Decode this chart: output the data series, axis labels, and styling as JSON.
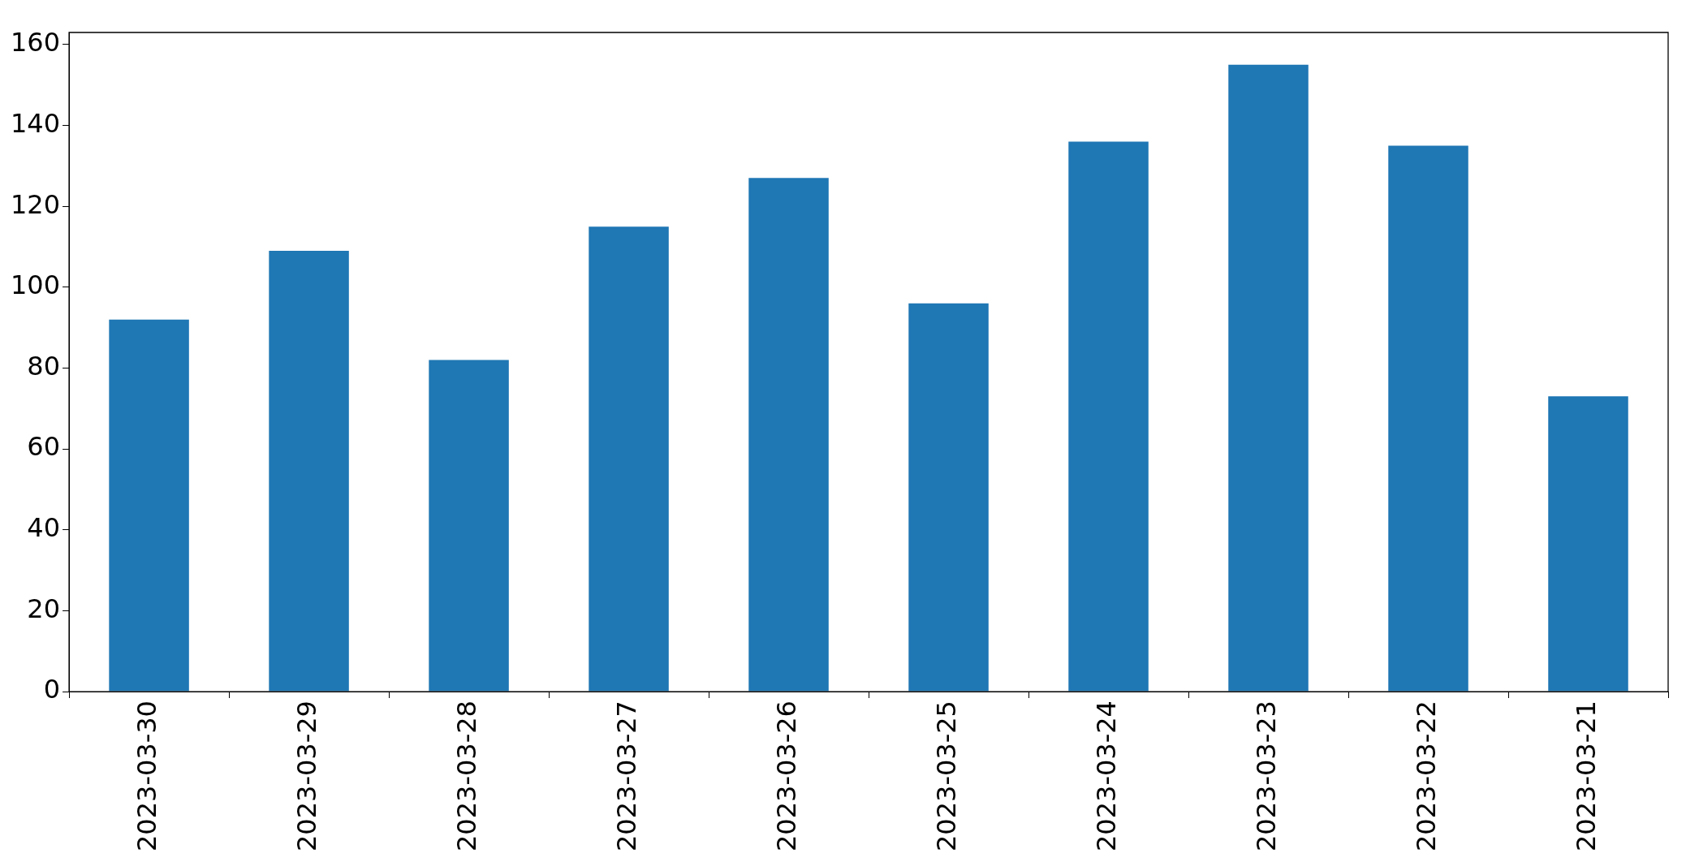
{
  "chart_data": {
    "type": "bar",
    "categories": [
      "2023-03-30",
      "2023-03-29",
      "2023-03-28",
      "2023-03-27",
      "2023-03-26",
      "2023-03-25",
      "2023-03-24",
      "2023-03-23",
      "2023-03-22",
      "2023-03-21"
    ],
    "values": [
      92,
      109,
      82,
      115,
      127,
      96,
      136,
      155,
      135,
      73
    ],
    "color": "#1f77b4",
    "ylim": [
      0,
      163
    ],
    "yticks": [
      0,
      20,
      40,
      60,
      80,
      100,
      120,
      140,
      160
    ]
  }
}
